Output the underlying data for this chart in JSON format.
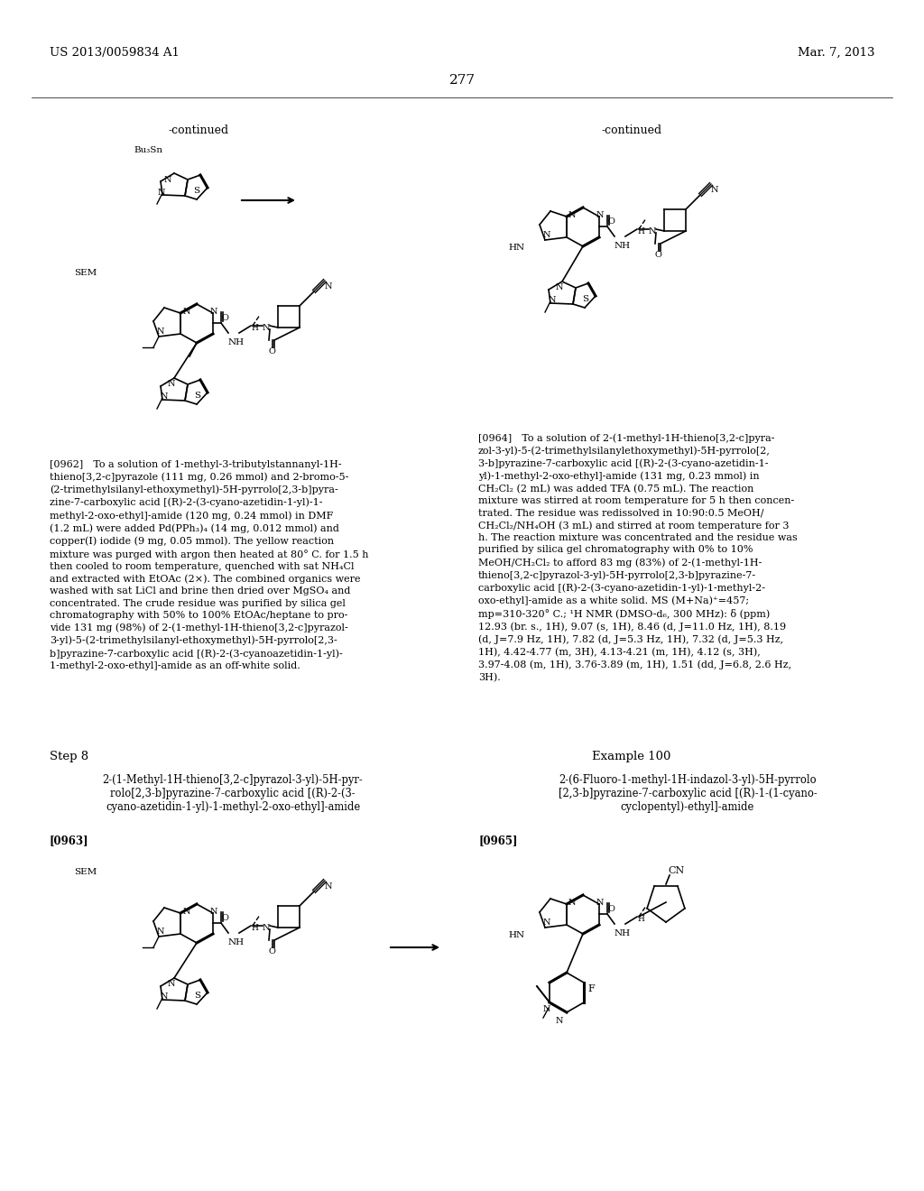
{
  "page_number": "277",
  "patent_number": "US 2013/0059834 A1",
  "patent_date": "Mar. 7, 2013",
  "background_color": "#ffffff",
  "text_color": "#000000",
  "continued_left": "-continued",
  "continued_right": "-continued",
  "step8_label": "Step 8",
  "example100_label": "Example 100",
  "compound_name_left": "2-(1-Methyl-1H-thieno[3,2-c]pyrazol-3-yl)-5H-pyr-\nrolo[2,3-b]pyrazine-7-carboxylic acid [(R)-2-(3-\ncyano-azetidin-1-yl)-1-methyl-2-oxo-ethyl]-amide",
  "compound_name_right": "2-(6-Fluoro-1-methyl-1H-indazol-3-yl)-5H-pyrrolo\n[2,3-b]pyrazine-7-carboxylic acid [(R)-1-(1-cyano-\ncyclopentyl)-ethyl]-amide",
  "para_0962_label": "[0962]",
  "para_0963_label": "[0963]",
  "para_0964_label": "[0964]",
  "para_0965_label": "[0965]"
}
